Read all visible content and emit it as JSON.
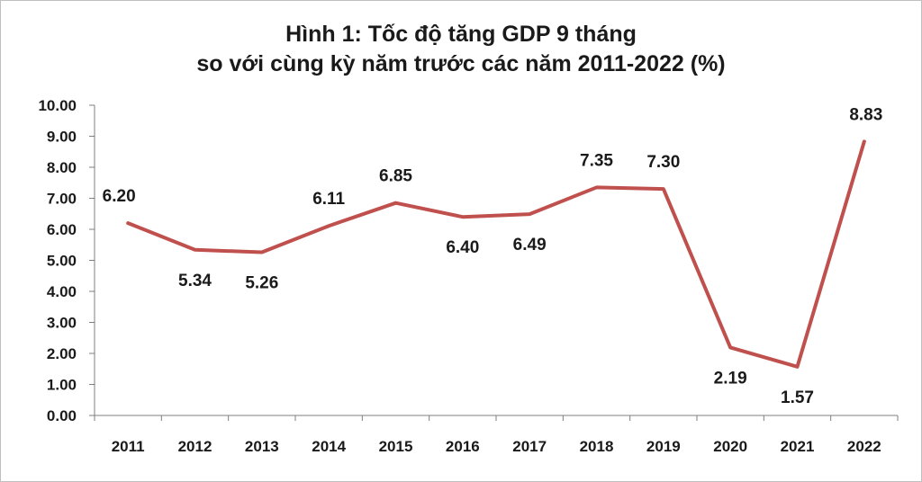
{
  "chart_data": {
    "type": "line",
    "title_line1": "Hình 1: Tốc độ tăng GDP 9 tháng",
    "title_line2": "so với cùng kỳ năm trước các năm 2011-2022 (%)",
    "xlabel": "",
    "ylabel": "",
    "categories": [
      "2011",
      "2012",
      "2013",
      "2014",
      "2015",
      "2016",
      "2017",
      "2018",
      "2019",
      "2020",
      "2021",
      "2022"
    ],
    "series": [
      {
        "values": [
          6.2,
          5.34,
          5.26,
          6.11,
          6.85,
          6.4,
          6.49,
          7.35,
          7.3,
          2.19,
          1.57,
          8.83
        ],
        "value_labels": [
          "6.20",
          "5.34",
          "5.26",
          "6.11",
          "6.85",
          "6.40",
          "6.49",
          "7.35",
          "7.30",
          "2.19",
          "1.57",
          "8.83"
        ],
        "label_positions": [
          "above",
          "below",
          "below",
          "above",
          "above",
          "below",
          "below",
          "above",
          "above",
          "below",
          "below",
          "above"
        ],
        "color": "#c0504d"
      }
    ],
    "ylim": [
      0,
      10
    ],
    "yticks": [
      "0.00",
      "1.00",
      "2.00",
      "3.00",
      "4.00",
      "5.00",
      "6.00",
      "7.00",
      "8.00",
      "9.00",
      "10.00"
    ],
    "grid": false,
    "legend": "none"
  }
}
